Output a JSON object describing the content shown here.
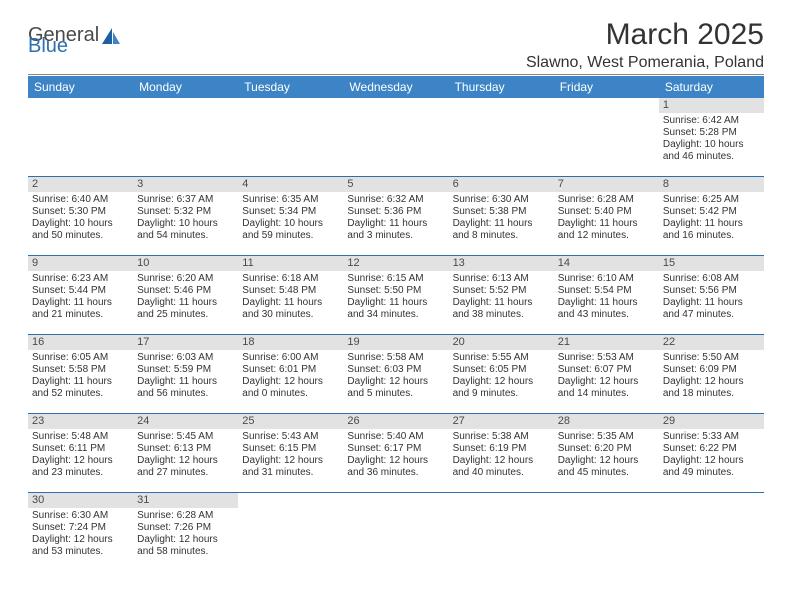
{
  "header": {
    "logo_text_1": "General",
    "logo_text_2": "Blue",
    "logo_color_gray": "#4a4a4a",
    "logo_color_blue": "#2f6fb0",
    "month_title": "March 2025",
    "location": "Slawno, West Pomerania, Poland"
  },
  "colors": {
    "header_bg": "#3d84c6",
    "header_fg": "#ffffff",
    "daynum_bg": "#e2e2e2",
    "cell_border": "#2f6fb0",
    "text": "#333333"
  },
  "weekdays": [
    "Sunday",
    "Monday",
    "Tuesday",
    "Wednesday",
    "Thursday",
    "Friday",
    "Saturday"
  ],
  "weeks": [
    [
      {
        "n": "",
        "sunrise": "",
        "sunset": "",
        "daylight": ""
      },
      {
        "n": "",
        "sunrise": "",
        "sunset": "",
        "daylight": ""
      },
      {
        "n": "",
        "sunrise": "",
        "sunset": "",
        "daylight": ""
      },
      {
        "n": "",
        "sunrise": "",
        "sunset": "",
        "daylight": ""
      },
      {
        "n": "",
        "sunrise": "",
        "sunset": "",
        "daylight": ""
      },
      {
        "n": "",
        "sunrise": "",
        "sunset": "",
        "daylight": ""
      },
      {
        "n": "1",
        "sunrise": "Sunrise: 6:42 AM",
        "sunset": "Sunset: 5:28 PM",
        "daylight": "Daylight: 10 hours and 46 minutes."
      }
    ],
    [
      {
        "n": "2",
        "sunrise": "Sunrise: 6:40 AM",
        "sunset": "Sunset: 5:30 PM",
        "daylight": "Daylight: 10 hours and 50 minutes."
      },
      {
        "n": "3",
        "sunrise": "Sunrise: 6:37 AM",
        "sunset": "Sunset: 5:32 PM",
        "daylight": "Daylight: 10 hours and 54 minutes."
      },
      {
        "n": "4",
        "sunrise": "Sunrise: 6:35 AM",
        "sunset": "Sunset: 5:34 PM",
        "daylight": "Daylight: 10 hours and 59 minutes."
      },
      {
        "n": "5",
        "sunrise": "Sunrise: 6:32 AM",
        "sunset": "Sunset: 5:36 PM",
        "daylight": "Daylight: 11 hours and 3 minutes."
      },
      {
        "n": "6",
        "sunrise": "Sunrise: 6:30 AM",
        "sunset": "Sunset: 5:38 PM",
        "daylight": "Daylight: 11 hours and 8 minutes."
      },
      {
        "n": "7",
        "sunrise": "Sunrise: 6:28 AM",
        "sunset": "Sunset: 5:40 PM",
        "daylight": "Daylight: 11 hours and 12 minutes."
      },
      {
        "n": "8",
        "sunrise": "Sunrise: 6:25 AM",
        "sunset": "Sunset: 5:42 PM",
        "daylight": "Daylight: 11 hours and 16 minutes."
      }
    ],
    [
      {
        "n": "9",
        "sunrise": "Sunrise: 6:23 AM",
        "sunset": "Sunset: 5:44 PM",
        "daylight": "Daylight: 11 hours and 21 minutes."
      },
      {
        "n": "10",
        "sunrise": "Sunrise: 6:20 AM",
        "sunset": "Sunset: 5:46 PM",
        "daylight": "Daylight: 11 hours and 25 minutes."
      },
      {
        "n": "11",
        "sunrise": "Sunrise: 6:18 AM",
        "sunset": "Sunset: 5:48 PM",
        "daylight": "Daylight: 11 hours and 30 minutes."
      },
      {
        "n": "12",
        "sunrise": "Sunrise: 6:15 AM",
        "sunset": "Sunset: 5:50 PM",
        "daylight": "Daylight: 11 hours and 34 minutes."
      },
      {
        "n": "13",
        "sunrise": "Sunrise: 6:13 AM",
        "sunset": "Sunset: 5:52 PM",
        "daylight": "Daylight: 11 hours and 38 minutes."
      },
      {
        "n": "14",
        "sunrise": "Sunrise: 6:10 AM",
        "sunset": "Sunset: 5:54 PM",
        "daylight": "Daylight: 11 hours and 43 minutes."
      },
      {
        "n": "15",
        "sunrise": "Sunrise: 6:08 AM",
        "sunset": "Sunset: 5:56 PM",
        "daylight": "Daylight: 11 hours and 47 minutes."
      }
    ],
    [
      {
        "n": "16",
        "sunrise": "Sunrise: 6:05 AM",
        "sunset": "Sunset: 5:58 PM",
        "daylight": "Daylight: 11 hours and 52 minutes."
      },
      {
        "n": "17",
        "sunrise": "Sunrise: 6:03 AM",
        "sunset": "Sunset: 5:59 PM",
        "daylight": "Daylight: 11 hours and 56 minutes."
      },
      {
        "n": "18",
        "sunrise": "Sunrise: 6:00 AM",
        "sunset": "Sunset: 6:01 PM",
        "daylight": "Daylight: 12 hours and 0 minutes."
      },
      {
        "n": "19",
        "sunrise": "Sunrise: 5:58 AM",
        "sunset": "Sunset: 6:03 PM",
        "daylight": "Daylight: 12 hours and 5 minutes."
      },
      {
        "n": "20",
        "sunrise": "Sunrise: 5:55 AM",
        "sunset": "Sunset: 6:05 PM",
        "daylight": "Daylight: 12 hours and 9 minutes."
      },
      {
        "n": "21",
        "sunrise": "Sunrise: 5:53 AM",
        "sunset": "Sunset: 6:07 PM",
        "daylight": "Daylight: 12 hours and 14 minutes."
      },
      {
        "n": "22",
        "sunrise": "Sunrise: 5:50 AM",
        "sunset": "Sunset: 6:09 PM",
        "daylight": "Daylight: 12 hours and 18 minutes."
      }
    ],
    [
      {
        "n": "23",
        "sunrise": "Sunrise: 5:48 AM",
        "sunset": "Sunset: 6:11 PM",
        "daylight": "Daylight: 12 hours and 23 minutes."
      },
      {
        "n": "24",
        "sunrise": "Sunrise: 5:45 AM",
        "sunset": "Sunset: 6:13 PM",
        "daylight": "Daylight: 12 hours and 27 minutes."
      },
      {
        "n": "25",
        "sunrise": "Sunrise: 5:43 AM",
        "sunset": "Sunset: 6:15 PM",
        "daylight": "Daylight: 12 hours and 31 minutes."
      },
      {
        "n": "26",
        "sunrise": "Sunrise: 5:40 AM",
        "sunset": "Sunset: 6:17 PM",
        "daylight": "Daylight: 12 hours and 36 minutes."
      },
      {
        "n": "27",
        "sunrise": "Sunrise: 5:38 AM",
        "sunset": "Sunset: 6:19 PM",
        "daylight": "Daylight: 12 hours and 40 minutes."
      },
      {
        "n": "28",
        "sunrise": "Sunrise: 5:35 AM",
        "sunset": "Sunset: 6:20 PM",
        "daylight": "Daylight: 12 hours and 45 minutes."
      },
      {
        "n": "29",
        "sunrise": "Sunrise: 5:33 AM",
        "sunset": "Sunset: 6:22 PM",
        "daylight": "Daylight: 12 hours and 49 minutes."
      }
    ],
    [
      {
        "n": "30",
        "sunrise": "Sunrise: 6:30 AM",
        "sunset": "Sunset: 7:24 PM",
        "daylight": "Daylight: 12 hours and 53 minutes."
      },
      {
        "n": "31",
        "sunrise": "Sunrise: 6:28 AM",
        "sunset": "Sunset: 7:26 PM",
        "daylight": "Daylight: 12 hours and 58 minutes."
      },
      {
        "n": "",
        "sunrise": "",
        "sunset": "",
        "daylight": ""
      },
      {
        "n": "",
        "sunrise": "",
        "sunset": "",
        "daylight": ""
      },
      {
        "n": "",
        "sunrise": "",
        "sunset": "",
        "daylight": ""
      },
      {
        "n": "",
        "sunrise": "",
        "sunset": "",
        "daylight": ""
      },
      {
        "n": "",
        "sunrise": "",
        "sunset": "",
        "daylight": ""
      }
    ]
  ]
}
